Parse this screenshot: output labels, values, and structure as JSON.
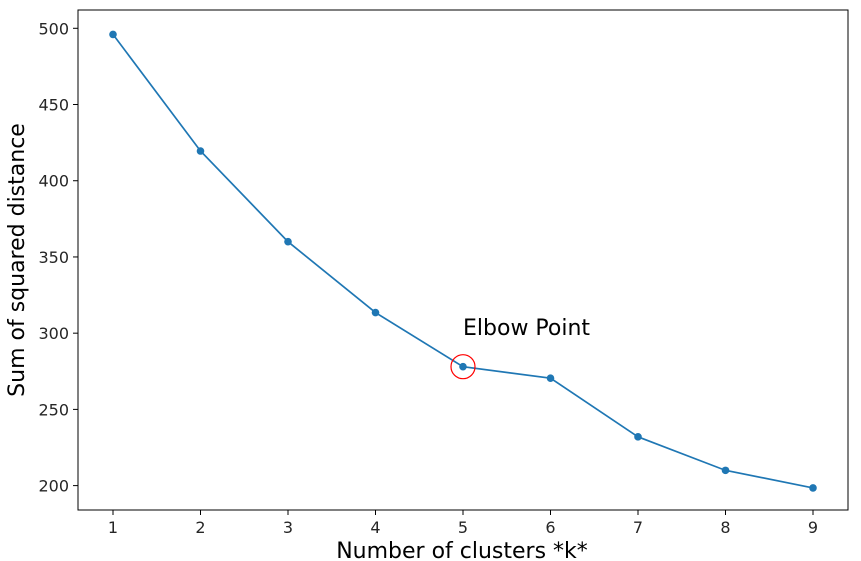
{
  "chart_data": {
    "type": "line",
    "title": "",
    "xlabel": "Number of clusters *k*",
    "ylabel": "Sum of squared distance",
    "x": [
      1,
      2,
      3,
      4,
      5,
      6,
      7,
      8,
      9
    ],
    "series": [
      {
        "values": [
          496,
          419.5,
          360,
          313.5,
          278,
          270.5,
          232,
          210,
          198.5
        ],
        "color": "#1f77b4",
        "marker": "circle"
      }
    ],
    "xlim": [
      0.6,
      9.4
    ],
    "ylim": [
      184,
      512
    ],
    "xticks": [
      1,
      2,
      3,
      4,
      5,
      6,
      7,
      8,
      9
    ],
    "yticks": [
      200,
      250,
      300,
      350,
      400,
      450,
      500
    ],
    "grid": false,
    "legend": "none",
    "annotations": [
      {
        "text": "Elbow Point",
        "x": 5,
        "y": 300
      }
    ],
    "highlight": {
      "x": 5,
      "y": 278,
      "shape": "circle-outline",
      "color": "#ff0000"
    }
  }
}
